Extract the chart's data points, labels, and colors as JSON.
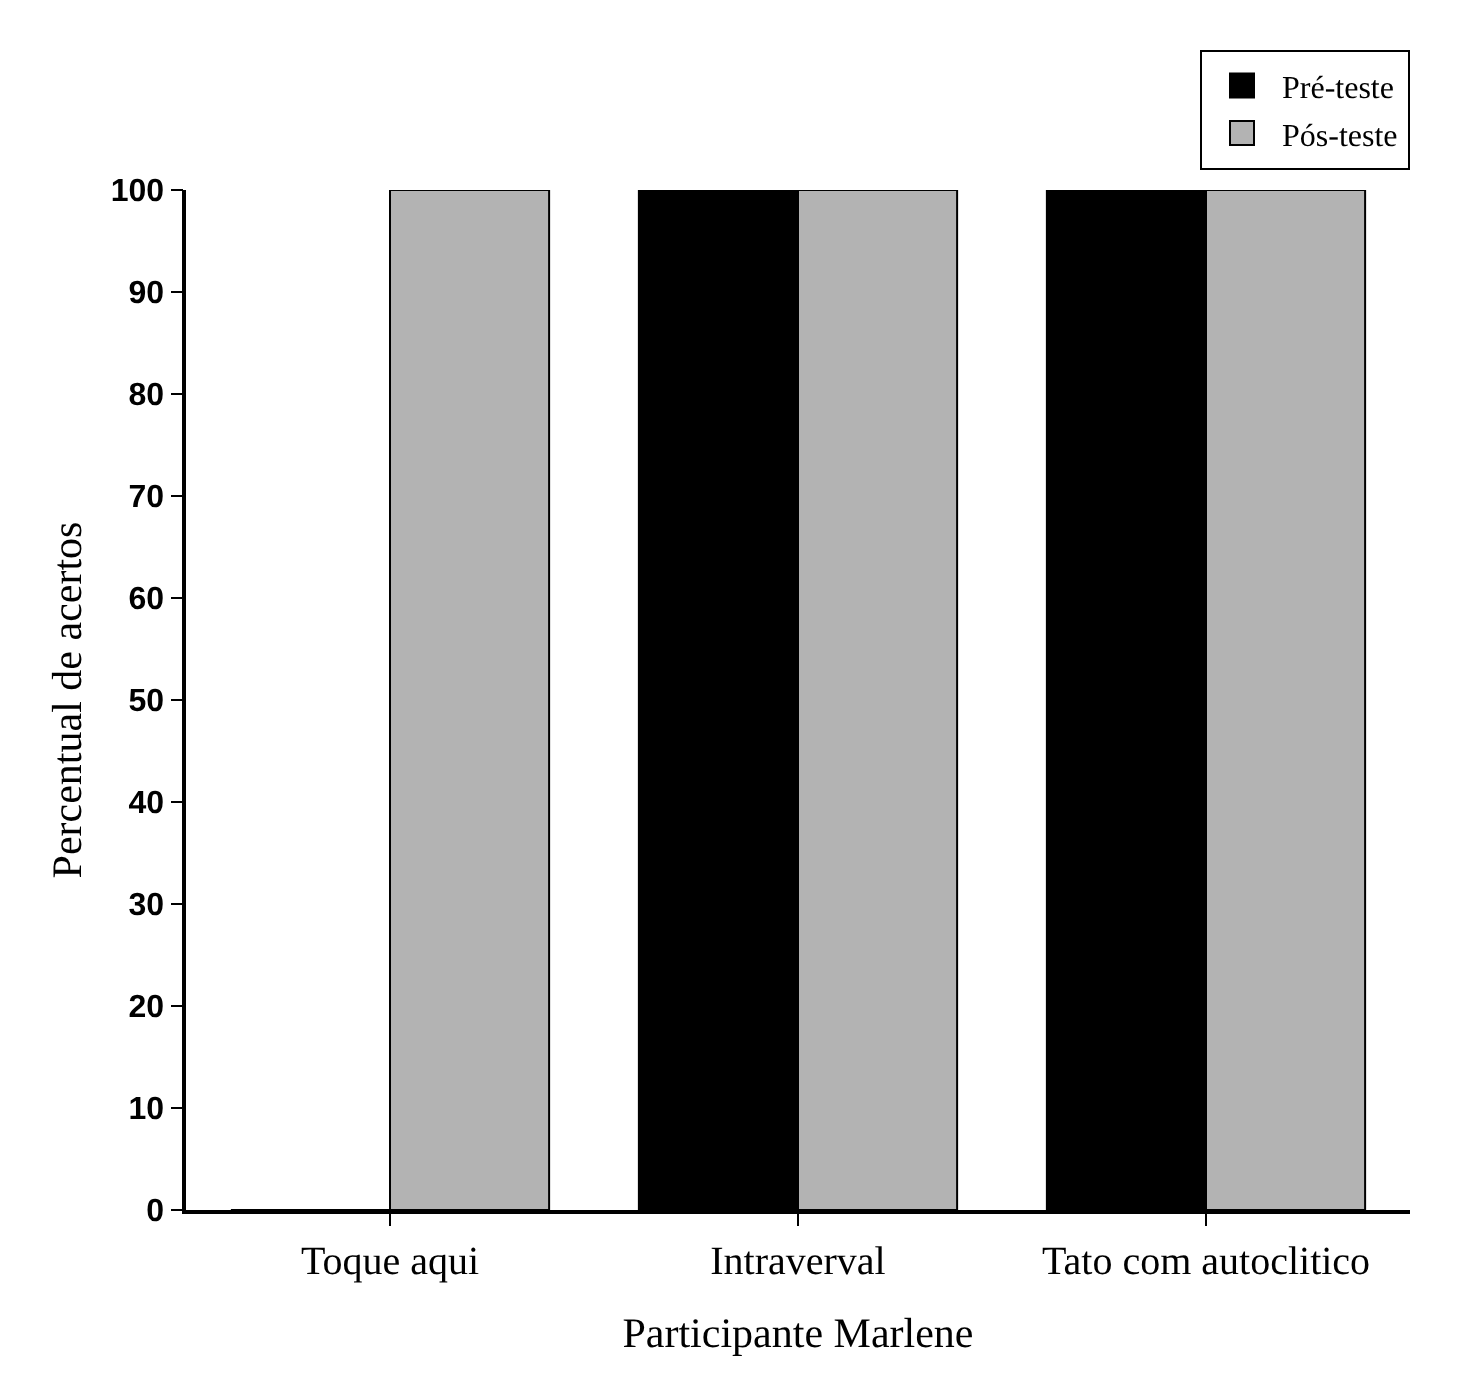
{
  "chart_data": {
    "type": "bar",
    "xlabel": "Participante Marlene",
    "ylabel": "Percentual de acertos",
    "categories": [
      "Toque aqui",
      "Intraverval",
      "Tato com autoclitico"
    ],
    "series": [
      {
        "name": "Pré-teste",
        "color": "#000000",
        "values": [
          0,
          100,
          100
        ]
      },
      {
        "name": "Pós-teste",
        "color": "#b3b3b3",
        "values": [
          100,
          100,
          100
        ]
      }
    ],
    "ylim": [
      0,
      100
    ],
    "yticks": [
      0,
      10,
      20,
      30,
      40,
      50,
      60,
      70,
      80,
      90,
      100
    ],
    "grid": false,
    "legend": "top right"
  }
}
